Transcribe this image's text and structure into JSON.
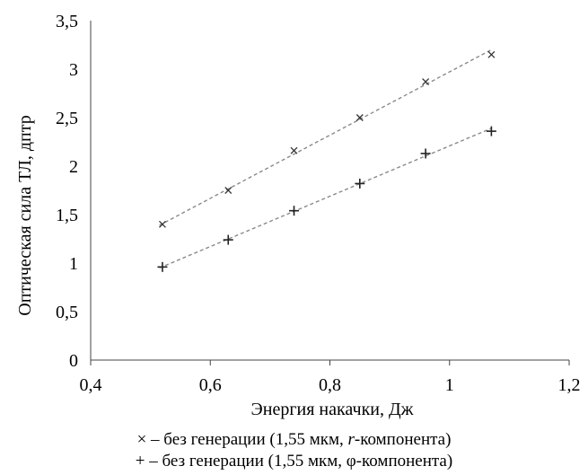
{
  "chart_data": {
    "type": "scatter",
    "xlabel": "Энергия накачки, Дж",
    "ylabel": "Оптическая сила ТЛ, дптр",
    "xlim": [
      0.4,
      1.2
    ],
    "ylim": [
      0,
      3.5
    ],
    "x_ticks": [
      "0,4",
      "0,6",
      "0,8",
      "1",
      "1,2"
    ],
    "y_ticks": [
      "0",
      "0,5",
      "1",
      "1,5",
      "2",
      "2,5",
      "3",
      "3,5"
    ],
    "grid": false,
    "trendlines": "dashed linear, gray",
    "series": [
      {
        "marker": "x",
        "x": [
          0.52,
          0.63,
          0.74,
          0.85,
          0.96,
          1.07
        ],
        "y": [
          1.4,
          1.75,
          2.16,
          2.5,
          2.87,
          3.15
        ],
        "trend": [
          [
            0.515,
            1.39
          ],
          [
            1.07,
            3.2
          ]
        ]
      },
      {
        "marker": "+",
        "x": [
          0.52,
          0.63,
          0.74,
          0.85,
          0.96,
          1.07
        ],
        "y": [
          0.96,
          1.24,
          1.54,
          1.82,
          2.13,
          2.36
        ],
        "trend": [
          [
            0.515,
            0.95
          ],
          [
            1.07,
            2.39
          ]
        ]
      }
    ]
  },
  "legend": {
    "line1": {
      "marker": "×",
      "pre": " – без генерации (1,55 мкм, ",
      "var": "r",
      "post": "-компонента)"
    },
    "line2": {
      "marker": "+",
      "text": " – без генерации (1,55 мкм, φ-компонента)"
    }
  }
}
